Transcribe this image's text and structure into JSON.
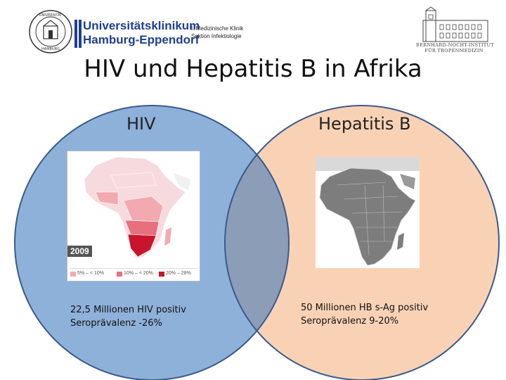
{
  "header": {
    "uni_line1": "Universitätsklinikum",
    "uni_line2": "Hamburg-Eppendorf",
    "dept_line1": "I. Medizinische Klinik",
    "dept_line2": "Sektion Infektiologie",
    "bni_line1": "BERNHARD-NOCHT-INSTITUT",
    "bni_line2": "FÜR TROPENMEDIZIN",
    "seal_text": "UNIVERSITÄT HAMBURG"
  },
  "title": "HIV und Hepatitis B in Afrika",
  "colors": {
    "hiv_circle": "#8eb1d9",
    "hbv_circle": "#f9d2b6",
    "overlap": "#8c9db8",
    "circle_border": "#3b5a8c",
    "uke_blue": "#1f3f8f"
  },
  "left": {
    "label": "HIV",
    "map_year": "2009",
    "legend": [
      "5% – < 10%",
      "10% – < 20%",
      "20% – 28%"
    ],
    "legend_colors": [
      "#f3a9b0",
      "#e8707e",
      "#c8142c"
    ],
    "stat_line1": "22,5 Millionen HIV positiv",
    "stat_line2": "Seroprävalenz -26%"
  },
  "right": {
    "label": "Hepatitis B",
    "stat_line1": "50 Millionen HB s-Ag positiv",
    "stat_line2": "Seroprävalenz 9-20%"
  }
}
